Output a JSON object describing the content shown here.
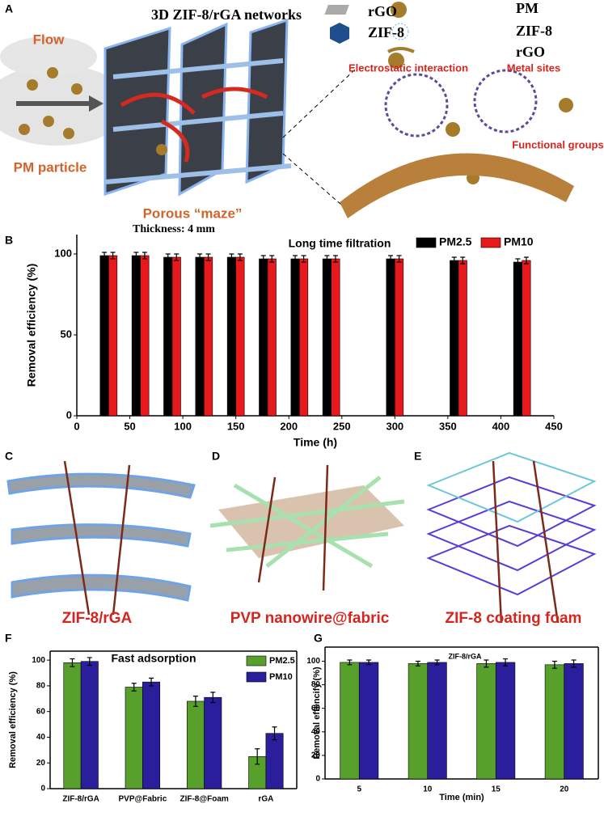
{
  "panel_labels": [
    "A",
    "B",
    "C",
    "D",
    "E",
    "F",
    "G"
  ],
  "panel_a": {
    "title": "3D ZIF-8/rGA networks",
    "flow": "Flow",
    "pm_particle": "PM particle",
    "maze": "Porous “maze”",
    "thickness": "Thickness: 4 mm",
    "legend_left": [
      "rGO",
      "ZIF-8"
    ],
    "legend_right": [
      "PM",
      "ZIF-8",
      "rGO"
    ],
    "callouts": [
      "Electrostatic interaction",
      "Metal sites",
      "Functional groups"
    ]
  },
  "panels_cde": {
    "captions": [
      "ZIF-8/rGA",
      "PVP nanowire@fabric",
      "ZIF-8 coating foam"
    ]
  },
  "chart_data": [
    {
      "type": "bar",
      "title": "Long time filtration",
      "x_label": "Time (h)",
      "y_label": "Removal efficiency (%)",
      "x": [
        30,
        60,
        90,
        120,
        150,
        180,
        210,
        240,
        300,
        360,
        420
      ],
      "series": [
        {
          "name": "PM2.5",
          "color": "#000000",
          "values": [
            99,
            99,
            98,
            98,
            98,
            97,
            97,
            97,
            97,
            96,
            95
          ],
          "errors": [
            2,
            2,
            2,
            2,
            2,
            2,
            2,
            2,
            2,
            2,
            2
          ]
        },
        {
          "name": "PM10",
          "color": "#e8191c",
          "values": [
            99,
            99,
            98,
            98,
            98,
            97,
            97,
            97,
            97,
            96,
            96
          ],
          "errors": [
            2,
            2,
            2,
            2,
            2,
            2,
            2,
            2,
            2,
            2,
            2
          ]
        }
      ],
      "xlim": [
        0,
        450
      ],
      "xticks": [
        0,
        50,
        100,
        150,
        200,
        250,
        300,
        350,
        400,
        450
      ],
      "ylim": [
        0,
        112
      ],
      "yticks": [
        0,
        50,
        100
      ],
      "legend": "top-right"
    },
    {
      "type": "bar",
      "title": "Fast adsorption",
      "y_label": "Removal efficiency (%)",
      "categories": [
        "ZIF-8/rGA",
        "PVP@Fabric",
        "ZIF-8@Foam",
        "rGA"
      ],
      "series": [
        {
          "name": "PM2.5",
          "color": "#58a02c",
          "values": [
            98,
            79,
            68,
            25
          ],
          "errors": [
            3,
            3,
            4,
            6
          ]
        },
        {
          "name": "PM10",
          "color": "#2b1e9c",
          "values": [
            99,
            83,
            71,
            43
          ],
          "errors": [
            3,
            3,
            4,
            5
          ]
        }
      ],
      "ylim": [
        0,
        107
      ],
      "yticks": [
        0,
        20,
        40,
        60,
        80,
        100
      ],
      "legend": "top-right",
      "box": true
    },
    {
      "type": "bar",
      "annotation": "ZIF-8/rGA",
      "x_label": "Time (min)",
      "y_label": "Removal effencify (%)",
      "categories": [
        "5",
        "10",
        "15",
        "20"
      ],
      "series": [
        {
          "color": "#58a02c",
          "values": [
            99,
            98,
            98,
            97
          ],
          "errors": [
            2,
            2,
            3,
            3
          ]
        },
        {
          "color": "#2b1e9c",
          "values": [
            99,
            99,
            99,
            98
          ],
          "errors": [
            2,
            2,
            3,
            3
          ]
        }
      ],
      "ylim": [
        0,
        112
      ],
      "yticks": [
        0,
        20,
        40,
        60,
        80,
        100
      ],
      "box": true
    }
  ]
}
